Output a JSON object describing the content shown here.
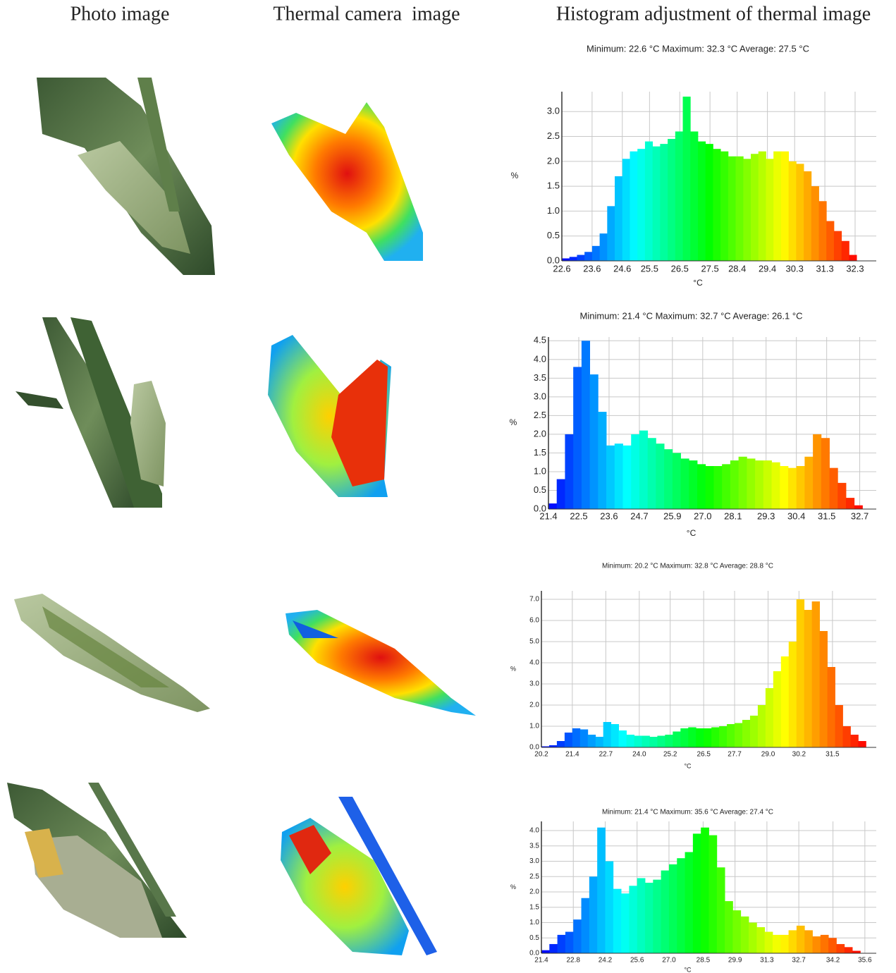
{
  "columns": [
    "Photo image",
    "Thermal camera  image",
    "Histogram adjustment of thermal image"
  ],
  "chart_data": [
    {
      "type": "histogram",
      "title": "Minimum: 22.6 °C Maximum: 32.3 °C Average: 27.5 °C",
      "xlabel": "°C",
      "ylabel": "%",
      "bins": [
        22.6,
        22.85,
        23.1,
        23.35,
        23.6,
        23.85,
        24.1,
        24.35,
        24.6,
        24.85,
        25.1,
        25.35,
        25.6,
        25.85,
        26.1,
        26.35,
        26.6,
        26.85,
        27.1,
        27.35,
        27.6,
        27.85,
        28.1,
        28.35,
        28.6,
        28.85,
        29.1,
        29.35,
        29.6,
        29.85,
        30.1,
        30.35,
        30.6,
        30.85,
        31.1,
        31.35,
        31.6,
        31.85,
        32.1,
        32.35
      ],
      "values": [
        0.05,
        0.08,
        0.12,
        0.18,
        0.3,
        0.55,
        1.1,
        1.7,
        2.05,
        2.2,
        2.25,
        2.4,
        2.3,
        2.35,
        2.45,
        2.6,
        3.3,
        2.6,
        2.4,
        2.35,
        2.25,
        2.2,
        2.1,
        2.1,
        2.05,
        2.15,
        2.2,
        2.05,
        2.2,
        2.2,
        2.0,
        1.95,
        1.8,
        1.5,
        1.2,
        0.8,
        0.6,
        0.4,
        0.12
      ],
      "xlim": [
        22.6,
        33.0
      ],
      "ylim": [
        0,
        3.4
      ],
      "xticks": [
        22.6,
        23.6,
        24.6,
        25.5,
        26.5,
        27.5,
        28.4,
        29.4,
        30.3,
        31.3,
        32.3
      ],
      "yticks": [
        {
          "value": 0,
          "label": "0.0"
        },
        0.5,
        {
          "value": 1,
          "label": "1.0"
        },
        1.5,
        {
          "value": 2,
          "label": "2.0"
        },
        2.5,
        {
          "value": 3,
          "label": "3.0"
        }
      ],
      "grid": true,
      "colormap": "jet"
    },
    {
      "type": "histogram",
      "title": "Minimum: 21.4 °C Maximum: 32.7 °C Average: 26.1 °C",
      "xlabel": "°C",
      "ylabel": "%",
      "bins": [
        21.4,
        21.7,
        22.0,
        22.3,
        22.6,
        22.9,
        23.2,
        23.5,
        23.8,
        24.1,
        24.4,
        24.7,
        25.0,
        25.3,
        25.6,
        25.9,
        26.2,
        26.5,
        26.8,
        27.1,
        27.4,
        27.7,
        28.0,
        28.3,
        28.6,
        28.9,
        29.2,
        29.5,
        29.8,
        30.1,
        30.4,
        30.7,
        31.0,
        31.3,
        31.6,
        31.9,
        32.2,
        32.5,
        32.8
      ],
      "values": [
        0.15,
        0.8,
        2.0,
        3.8,
        4.5,
        3.6,
        2.6,
        1.7,
        1.75,
        1.7,
        2.0,
        2.1,
        1.9,
        1.75,
        1.6,
        1.5,
        1.35,
        1.3,
        1.2,
        1.15,
        1.15,
        1.2,
        1.3,
        1.4,
        1.35,
        1.3,
        1.3,
        1.25,
        1.15,
        1.1,
        1.15,
        1.4,
        2.0,
        1.9,
        1.1,
        0.7,
        0.3,
        0.1
      ],
      "xlim": [
        21.4,
        33.3
      ],
      "ylim": [
        0,
        4.6
      ],
      "xticks": [
        21.4,
        22.5,
        23.6,
        24.7,
        25.9,
        {
          "value": 27,
          "label": "27.0"
        },
        28.1,
        29.3,
        30.4,
        31.5,
        32.7
      ],
      "yticks": [
        {
          "value": 0,
          "label": "0.0"
        },
        0.5,
        {
          "value": 1,
          "label": "1.0"
        },
        1.5,
        {
          "value": 2,
          "label": "2.0"
        },
        2.5,
        {
          "value": 3,
          "label": "3.0"
        },
        3.5,
        {
          "value": 4,
          "label": "4.0"
        },
        4.5
      ],
      "grid": true,
      "colormap": "jet"
    },
    {
      "type": "histogram",
      "title": "Minimum: 20.2 °C Maximum: 32.8 °C Average: 28.8 °C",
      "xlabel": "°C",
      "ylabel": "%",
      "bins": [
        20.2,
        20.5,
        20.8,
        21.1,
        21.4,
        21.7,
        22.0,
        22.3,
        22.6,
        22.9,
        23.2,
        23.5,
        23.8,
        24.1,
        24.4,
        24.7,
        25.0,
        25.3,
        25.6,
        25.9,
        26.2,
        26.5,
        26.8,
        27.1,
        27.4,
        27.7,
        28.0,
        28.3,
        28.6,
        28.9,
        29.2,
        29.5,
        29.8,
        30.1,
        30.4,
        30.7,
        31.0,
        31.3,
        31.6,
        31.9,
        32.2,
        32.5,
        32.8
      ],
      "values": [
        0.05,
        0.1,
        0.3,
        0.7,
        0.9,
        0.85,
        0.6,
        0.5,
        1.2,
        1.1,
        0.8,
        0.6,
        0.55,
        0.55,
        0.5,
        0.55,
        0.6,
        0.75,
        0.9,
        0.95,
        0.9,
        0.9,
        0.95,
        1.0,
        1.1,
        1.15,
        1.3,
        1.5,
        2.0,
        2.8,
        3.6,
        4.3,
        5.0,
        7.0,
        6.5,
        6.9,
        5.5,
        3.8,
        2.0,
        1.0,
        0.6,
        0.3
      ],
      "xlim": [
        20.2,
        33.2
      ],
      "ylim": [
        0,
        7.4
      ],
      "xticks": [
        20.2,
        21.4,
        22.7,
        {
          "value": 24,
          "label": "24.0"
        },
        25.2,
        26.5,
        27.7,
        {
          "value": 29,
          "label": "29.0"
        },
        30.2,
        31.5
      ],
      "yticks": [
        {
          "value": 0,
          "label": "0.0"
        },
        {
          "value": 1,
          "label": "1.0"
        },
        {
          "value": 2,
          "label": "2.0"
        },
        {
          "value": 3,
          "label": "3.0"
        },
        {
          "value": 4,
          "label": "4.0"
        },
        {
          "value": 5,
          "label": "5.0"
        },
        {
          "value": 6,
          "label": "6.0"
        },
        {
          "value": 7,
          "label": "7.0"
        }
      ],
      "grid": true,
      "colormap": "jet"
    },
    {
      "type": "histogram",
      "title": "Minimum: 21.4 °C Maximum: 35.6 °C Average: 27.4 °C",
      "xlabel": "°C",
      "ylabel": "%",
      "bins": [
        21.4,
        21.75,
        22.1,
        22.45,
        22.8,
        23.15,
        23.5,
        23.85,
        24.2,
        24.55,
        24.9,
        25.25,
        25.6,
        25.95,
        26.3,
        26.65,
        27.0,
        27.35,
        27.7,
        28.05,
        28.4,
        28.75,
        29.1,
        29.45,
        29.8,
        30.15,
        30.5,
        30.85,
        31.2,
        31.55,
        31.9,
        32.25,
        32.6,
        32.95,
        33.3,
        33.65,
        34.0,
        34.35,
        34.7,
        35.05,
        35.4
      ],
      "values": [
        0.1,
        0.3,
        0.6,
        0.7,
        1.1,
        1.8,
        2.5,
        4.1,
        3.0,
        2.1,
        1.95,
        2.2,
        2.45,
        2.3,
        2.4,
        2.7,
        2.9,
        3.1,
        3.3,
        3.9,
        4.1,
        3.85,
        2.8,
        1.7,
        1.4,
        1.2,
        1.0,
        0.85,
        0.7,
        0.6,
        0.6,
        0.75,
        0.9,
        0.75,
        0.55,
        0.6,
        0.5,
        0.3,
        0.2,
        0.08
      ],
      "xlim": [
        21.4,
        36.1
      ],
      "ylim": [
        0,
        4.3
      ],
      "xticks": [
        21.4,
        22.8,
        24.2,
        25.6,
        {
          "value": 27,
          "label": "27.0"
        },
        28.5,
        29.9,
        31.3,
        32.7,
        34.2,
        35.6
      ],
      "yticks": [
        {
          "value": 0,
          "label": "0.0"
        },
        0.5,
        {
          "value": 1,
          "label": "1.0"
        },
        1.5,
        {
          "value": 2,
          "label": "2.0"
        },
        2.5,
        {
          "value": 3,
          "label": "3.0"
        },
        3.5,
        {
          "value": 4,
          "label": "4.0"
        }
      ],
      "grid": true,
      "colormap": "jet"
    }
  ]
}
